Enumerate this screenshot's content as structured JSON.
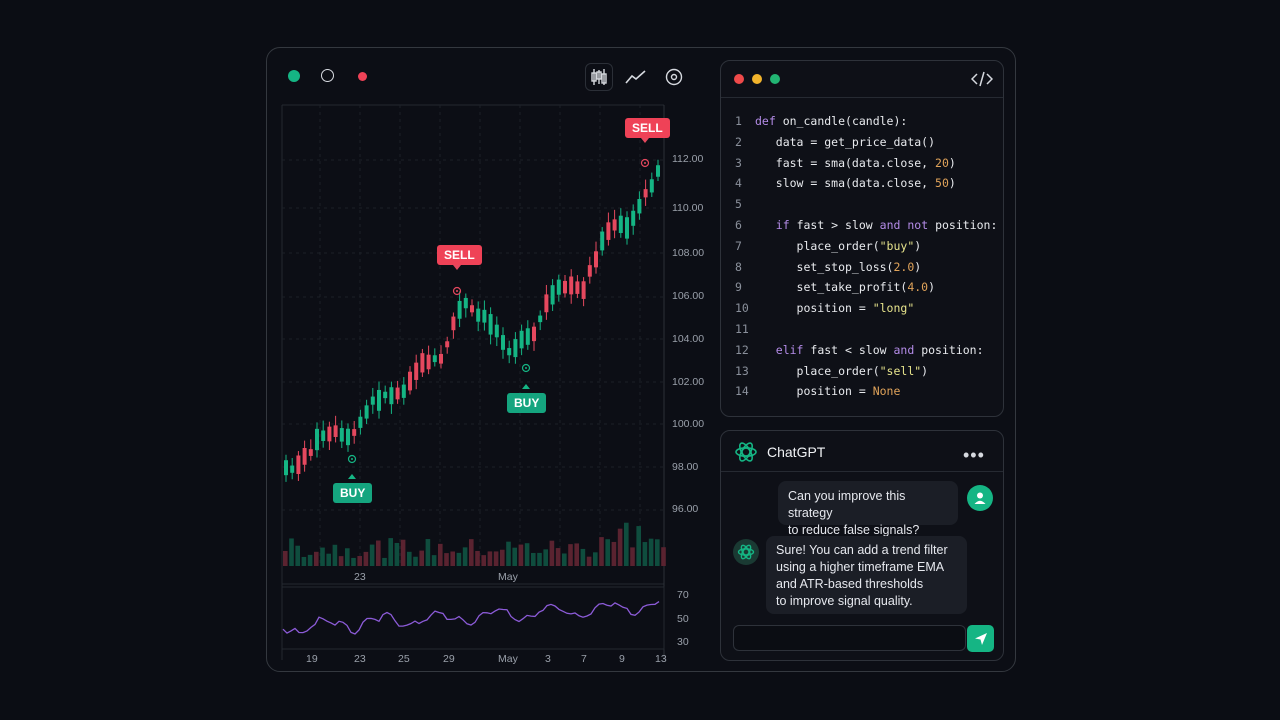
{
  "toolbar": {
    "dots": [
      "#15b584",
      "#0c0e15",
      "#ef4257"
    ],
    "tools": [
      "candlestick-icon",
      "line-chart-icon",
      "target-icon"
    ]
  },
  "chart": {
    "price_ticks": [
      "112.00",
      "110.00",
      "108.00",
      "106.00",
      "104.00",
      "102.00",
      "100.00",
      "98.00",
      "96.00"
    ],
    "x_ticks_main": [
      "23",
      "May"
    ],
    "osc_ticks": [
      "70",
      "50",
      "30"
    ],
    "x_ticks_bottom": [
      "19",
      "23",
      "25",
      "29",
      "May",
      "3",
      "7",
      "9",
      "13"
    ],
    "signals": [
      {
        "label": "SELL",
        "kind": "sell"
      },
      {
        "label": "SELL",
        "kind": "sell"
      },
      {
        "label": "BUY",
        "kind": "buy"
      },
      {
        "label": "BUY",
        "kind": "buy"
      }
    ],
    "colors": {
      "up": "#15b584",
      "down": "#e5485e",
      "osc": "#8c5bd8",
      "grid": "#1d2129"
    }
  },
  "code": {
    "title_icon": "code-icon",
    "window_dots": [
      "#ef4a4a",
      "#f2b42c",
      "#22b573"
    ],
    "lines": [
      {
        "n": "1",
        "text": "def on_candle(candle):"
      },
      {
        "n": "2",
        "text": "  data = get_price_data()"
      },
      {
        "n": "3",
        "text": "  fast = sma(data.close, 20)"
      },
      {
        "n": "4",
        "text": "  slow = sma(data.close, 50)"
      },
      {
        "n": "5",
        "text": ""
      },
      {
        "n": "6",
        "text": "  if fast > slow and not position:"
      },
      {
        "n": "7",
        "text": "    place_order(\"buy\")"
      },
      {
        "n": "8",
        "text": "    set_stop_loss(2.0)"
      },
      {
        "n": "9",
        "text": "    set_take_profit(4.0)"
      },
      {
        "n": "10",
        "text": "    position = \"long\""
      },
      {
        "n": "11",
        "text": ""
      },
      {
        "n": "12",
        "text": "  elif fast < slow and position:"
      },
      {
        "n": "13",
        "text": "    place_order(\"sell\")"
      },
      {
        "n": "14",
        "text": "    position = None"
      }
    ]
  },
  "chat": {
    "title": "ChatGPT",
    "menu_icon": "more-icon",
    "user_message": [
      "Can you improve this strategy",
      "to reduce false signals?"
    ],
    "assistant_message": [
      "Sure! You can add a trend filter",
      "using a higher timeframe EMA",
      "and ATR-based thresholds",
      "to improve signal quality."
    ],
    "input_placeholder": "",
    "send_icon": "send-icon"
  }
}
